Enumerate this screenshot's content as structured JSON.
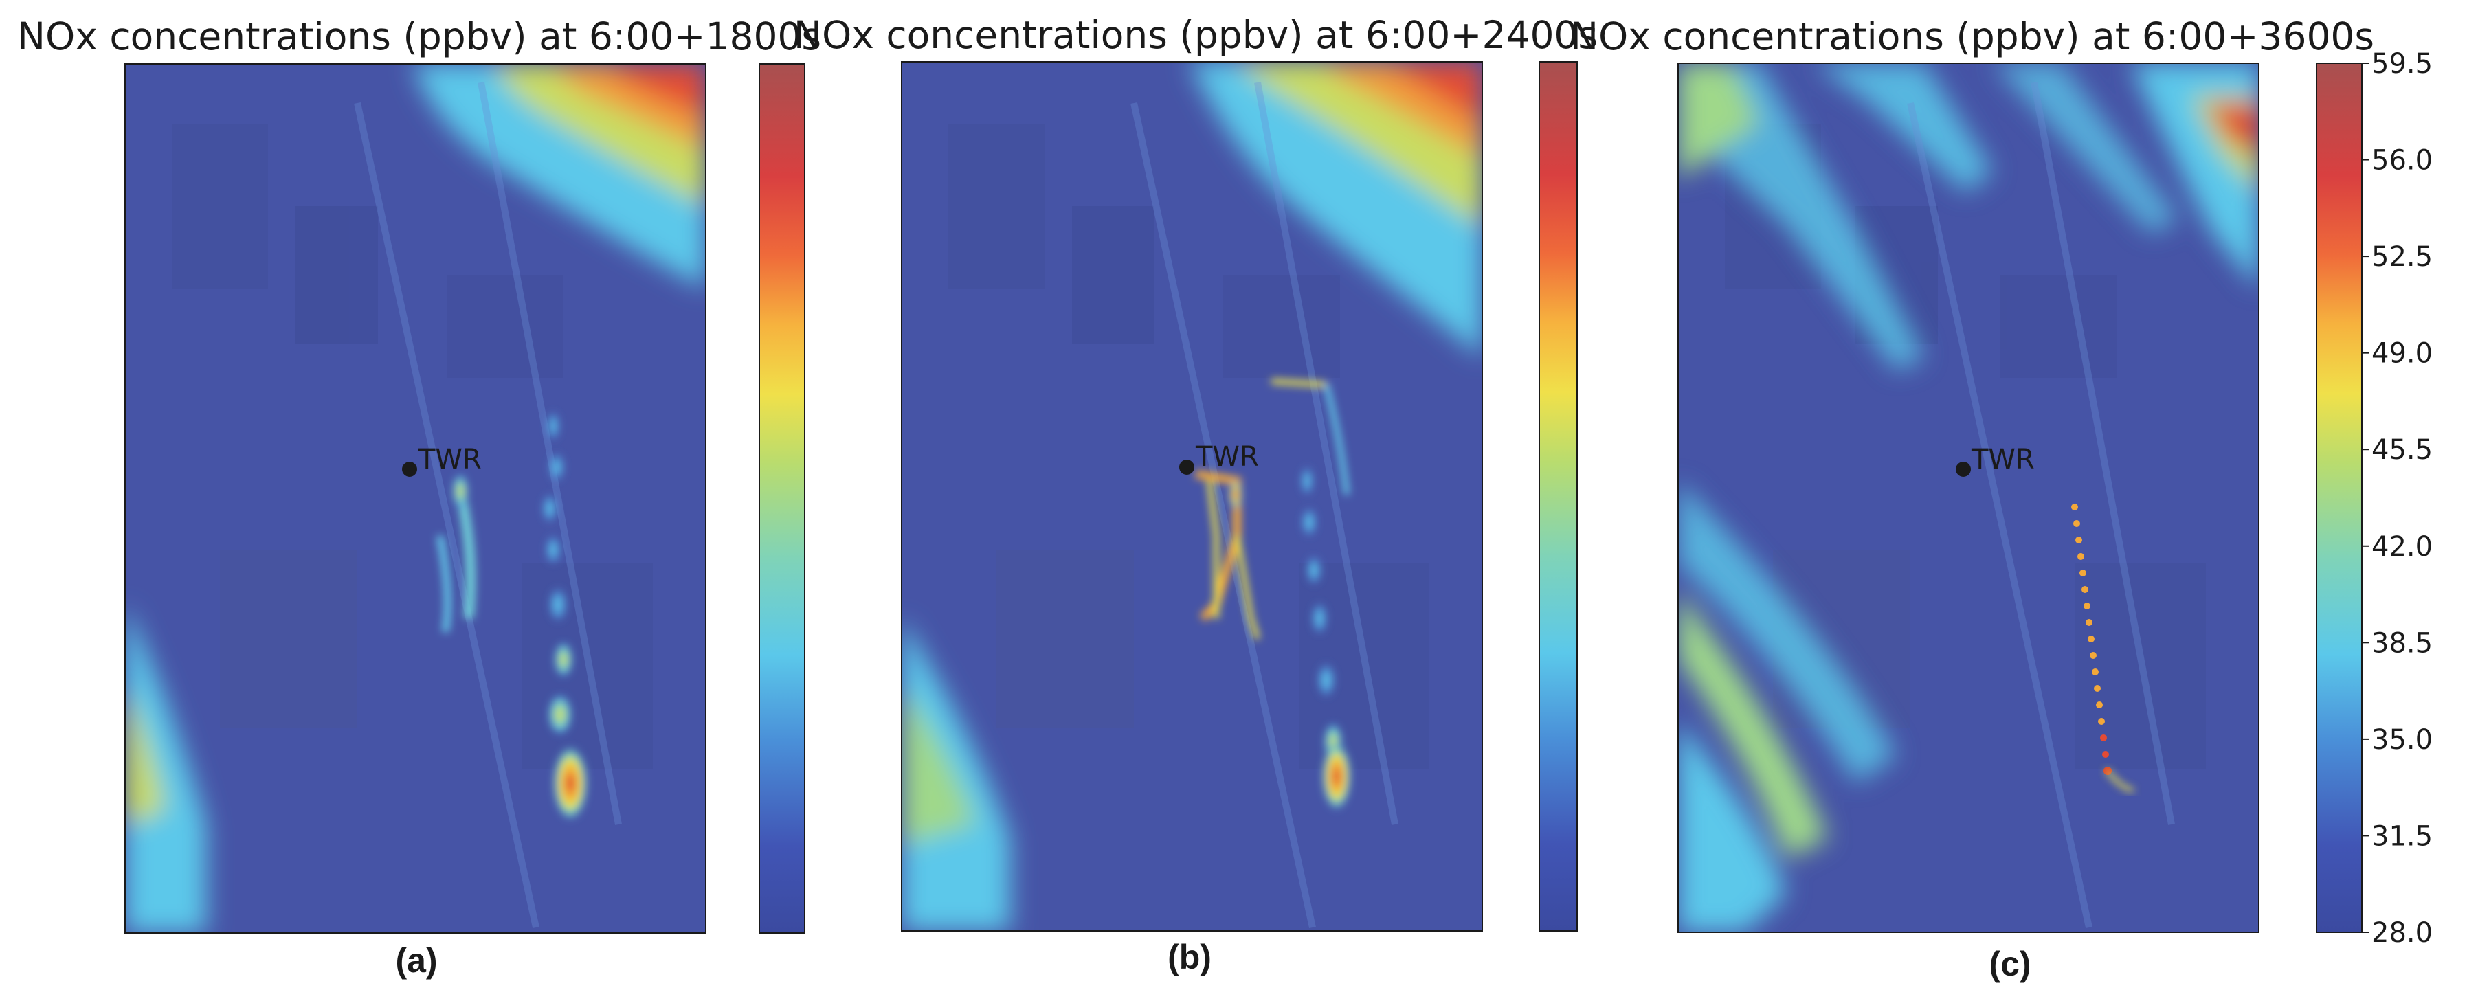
{
  "chart_data": {
    "type": "heatmap",
    "colormap": "jet",
    "panels": [
      {
        "title": "NOx concentrations (ppbv) at 6:00+1800s",
        "caption": "(a)",
        "annotation": "TWR"
      },
      {
        "title": "NOx concentrations (ppbv) at 6:00+2400s",
        "caption": "(b)",
        "annotation": "TWR"
      },
      {
        "title": "NOx concentrations (ppbv) at 6:00+3600s",
        "caption": "(c)",
        "annotation": "TWR"
      }
    ],
    "colorbar": {
      "vmin": 28.0,
      "vmax": 59.5,
      "ticks": [
        28.0,
        31.5,
        35.0,
        38.5,
        42.0,
        45.5,
        49.0,
        52.5,
        56.0,
        59.5
      ],
      "tick_labels": [
        "28.0",
        "31.5",
        "35.0",
        "38.5",
        "42.0",
        "45.5",
        "49.0",
        "52.5",
        "56.0",
        "59.5"
      ]
    }
  },
  "colors": {
    "background_field": "#4654a6",
    "text": "#1a1a1a"
  }
}
